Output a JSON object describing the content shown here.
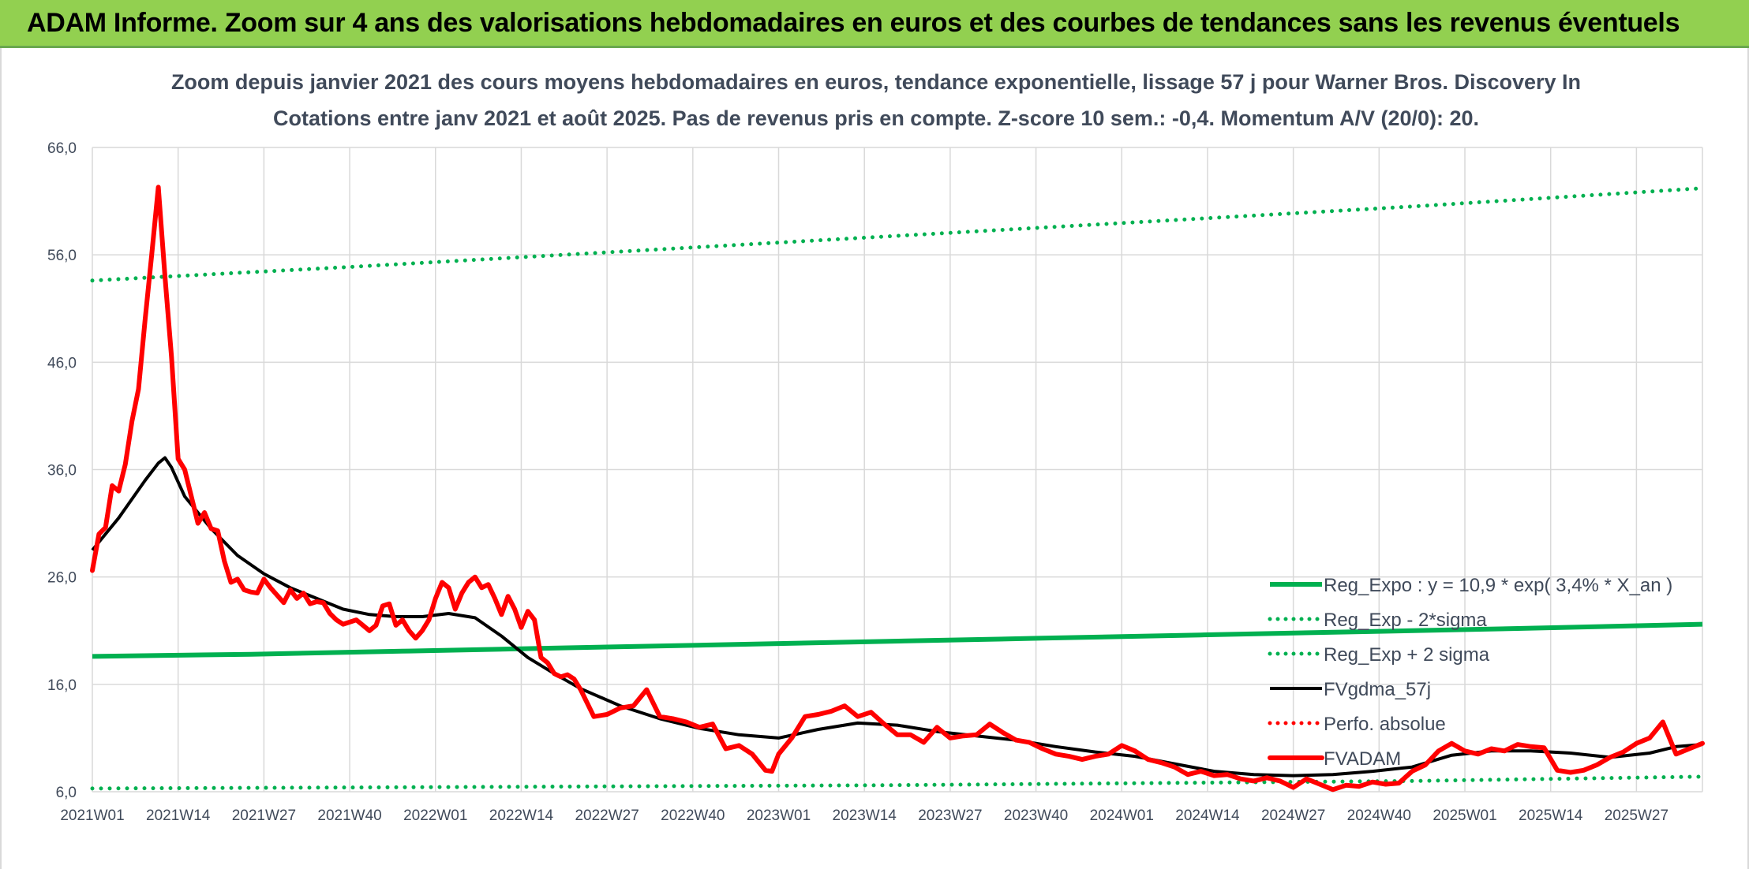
{
  "header": {
    "title": "ADAM Informe. Zoom sur 4 ans des valorisations hebdomadaires en euros et des courbes de tendances sans les revenus éventuels"
  },
  "chart_data": {
    "type": "line",
    "title_line1": "Zoom depuis janvier 2021 des cours moyens hebdomadaires en euros, tendance exponentielle, lissage 57 j pour Warner Bros. Discovery In",
    "title_line2": "Cotations entre janv 2021 et août 2025. Pas de revenus pris en compte. Z-score 10 sem.: -0,4. Momentum A/V (20/0): 20.",
    "ylim": [
      6,
      66
    ],
    "y_ticks": [
      "66,0",
      "56,0",
      "46,0",
      "36,0",
      "26,0",
      "16,0",
      "6,0"
    ],
    "y_tick_values": [
      66,
      56,
      46,
      36,
      26,
      16,
      6
    ],
    "x_ticks": [
      "2021W01",
      "2021W14",
      "2021W27",
      "2021W40",
      "2022W01",
      "2022W14",
      "2022W27",
      "2022W40",
      "2023W01",
      "2023W14",
      "2023W27",
      "2023W40",
      "2024W01",
      "2024W14",
      "2024W27",
      "2024W40",
      "2025W01",
      "2025W14",
      "2025W27"
    ],
    "x_tick_index": [
      0,
      13,
      26,
      39,
      52,
      65,
      78,
      91,
      104,
      117,
      130,
      143,
      156,
      169,
      182,
      195,
      208,
      221,
      234
    ],
    "n_weeks": 245,
    "grid": true,
    "legend_position": "right",
    "series": [
      {
        "name": "Reg_Expo : y = 10,9 * exp( 3,4% *  X_an )",
        "color": "#00b050",
        "style": "solid",
        "x": [
          0,
          24,
          48,
          72,
          96,
          120,
          144,
          168,
          192,
          216,
          244
        ],
        "values": [
          18.6,
          18.8,
          19.1,
          19.4,
          19.7,
          20.0,
          20.3,
          20.6,
          20.9,
          21.2,
          21.6
        ]
      },
      {
        "name": "Reg_Exp - 2*sigma",
        "color": "#00b050",
        "style": "dotted",
        "x": [
          0,
          40,
          80,
          120,
          160,
          200,
          244
        ],
        "values": [
          6.3,
          6.4,
          6.5,
          6.6,
          6.8,
          7.0,
          7.4
        ]
      },
      {
        "name": "Reg_Exp + 2 sigma",
        "color": "#00b050",
        "style": "dotted",
        "x": [
          0,
          40,
          80,
          120,
          160,
          200,
          244
        ],
        "values": [
          53.6,
          54.9,
          56.3,
          57.7,
          59.1,
          60.5,
          62.2
        ]
      },
      {
        "name": "FVgdma_57j",
        "color": "#000000",
        "style": "solid",
        "x": [
          0,
          4,
          8,
          10,
          11,
          12,
          14,
          18,
          22,
          26,
          30,
          34,
          38,
          42,
          46,
          50,
          54,
          58,
          62,
          66,
          70,
          74,
          80,
          86,
          92,
          98,
          104,
          110,
          116,
          122,
          128,
          134,
          140,
          146,
          152,
          158,
          164,
          170,
          176,
          182,
          188,
          194,
          200,
          206,
          212,
          218,
          224,
          230,
          236,
          240,
          244
        ],
        "values": [
          28.5,
          31.5,
          35.0,
          36.6,
          37.1,
          36.2,
          33.5,
          30.5,
          28.0,
          26.3,
          25.0,
          24.0,
          23.0,
          22.5,
          22.3,
          22.3,
          22.6,
          22.2,
          20.5,
          18.5,
          17.0,
          15.6,
          14.0,
          12.8,
          11.9,
          11.3,
          11.0,
          11.8,
          12.4,
          12.2,
          11.6,
          11.2,
          10.8,
          10.2,
          9.7,
          9.3,
          8.6,
          7.9,
          7.6,
          7.5,
          7.6,
          7.9,
          8.3,
          9.4,
          9.8,
          9.8,
          9.6,
          9.2,
          9.6,
          10.2,
          10.4
        ]
      },
      {
        "name": "Perfo. absolue",
        "color": "#ff0000",
        "style": "dotted",
        "x": [],
        "values": []
      },
      {
        "name": "FVADAM",
        "color": "#ff0000",
        "style": "solid-thick",
        "x": [
          0,
          1,
          2,
          3,
          4,
          5,
          6,
          7,
          8,
          9,
          10,
          11,
          12,
          13,
          14,
          15,
          16,
          17,
          18,
          19,
          20,
          21,
          22,
          23,
          24,
          25,
          26,
          27,
          28,
          29,
          30,
          31,
          32,
          33,
          34,
          35,
          36,
          37,
          38,
          39,
          40,
          41,
          42,
          43,
          44,
          45,
          46,
          47,
          48,
          49,
          50,
          51,
          52,
          53,
          54,
          55,
          56,
          57,
          58,
          59,
          60,
          61,
          62,
          63,
          64,
          65,
          66,
          67,
          68,
          69,
          70,
          71,
          72,
          73,
          74,
          76,
          78,
          80,
          82,
          84,
          86,
          88,
          90,
          92,
          94,
          96,
          98,
          100,
          102,
          103,
          104,
          106,
          108,
          110,
          112,
          114,
          116,
          118,
          120,
          122,
          124,
          126,
          128,
          130,
          132,
          134,
          136,
          138,
          140,
          142,
          144,
          146,
          148,
          150,
          152,
          154,
          156,
          158,
          160,
          162,
          164,
          166,
          168,
          170,
          172,
          174,
          176,
          178,
          180,
          182,
          184,
          186,
          188,
          190,
          192,
          194,
          196,
          198,
          200,
          202,
          204,
          206,
          208,
          210,
          212,
          214,
          216,
          218,
          220,
          222,
          224,
          226,
          228,
          230,
          232,
          234,
          236,
          238,
          240,
          242,
          244
        ],
        "values": [
          26.6,
          30.0,
          30.6,
          34.5,
          34.0,
          36.5,
          40.5,
          43.5,
          50.0,
          56.0,
          62.3,
          54.0,
          46.5,
          37.0,
          36.0,
          33.5,
          31.0,
          32.0,
          30.5,
          30.3,
          27.5,
          25.5,
          25.8,
          24.8,
          24.6,
          24.5,
          25.8,
          25.0,
          24.3,
          23.6,
          24.8,
          24.0,
          24.5,
          23.5,
          23.7,
          23.6,
          22.6,
          22.0,
          21.6,
          21.8,
          22.0,
          21.5,
          21.0,
          21.5,
          23.3,
          23.5,
          21.5,
          22.0,
          21.0,
          20.3,
          21.0,
          22.0,
          24.0,
          25.5,
          25.0,
          23.0,
          24.5,
          25.5,
          26.0,
          25.0,
          25.3,
          24.0,
          22.5,
          24.2,
          23.0,
          21.3,
          22.8,
          22.0,
          18.5,
          18.0,
          17.0,
          16.7,
          16.9,
          16.5,
          15.5,
          13.0,
          13.2,
          13.8,
          14.0,
          15.5,
          13.0,
          12.8,
          12.5,
          12.0,
          12.3,
          10.0,
          10.3,
          9.5,
          8.0,
          7.9,
          9.5,
          11.0,
          13.0,
          13.2,
          13.5,
          14.0,
          13.0,
          13.4,
          12.3,
          11.3,
          11.3,
          10.6,
          12.0,
          11.0,
          11.2,
          11.3,
          12.3,
          11.5,
          10.8,
          10.6,
          10.0,
          9.5,
          9.3,
          9.0,
          9.3,
          9.5,
          10.3,
          9.8,
          9.0,
          8.7,
          8.3,
          7.6,
          7.9,
          7.5,
          7.6,
          7.2,
          7.0,
          7.3,
          7.0,
          6.4,
          7.2,
          6.7,
          6.2,
          6.6,
          6.5,
          6.9,
          6.7,
          6.8,
          7.9,
          8.5,
          9.8,
          10.5,
          9.8,
          9.5,
          10.0,
          9.8,
          10.4,
          10.2,
          10.1,
          8.0,
          7.8,
          8.0,
          8.5,
          9.2,
          9.7,
          10.5,
          11.0,
          12.5,
          9.5,
          10.0,
          10.5
        ]
      }
    ]
  }
}
